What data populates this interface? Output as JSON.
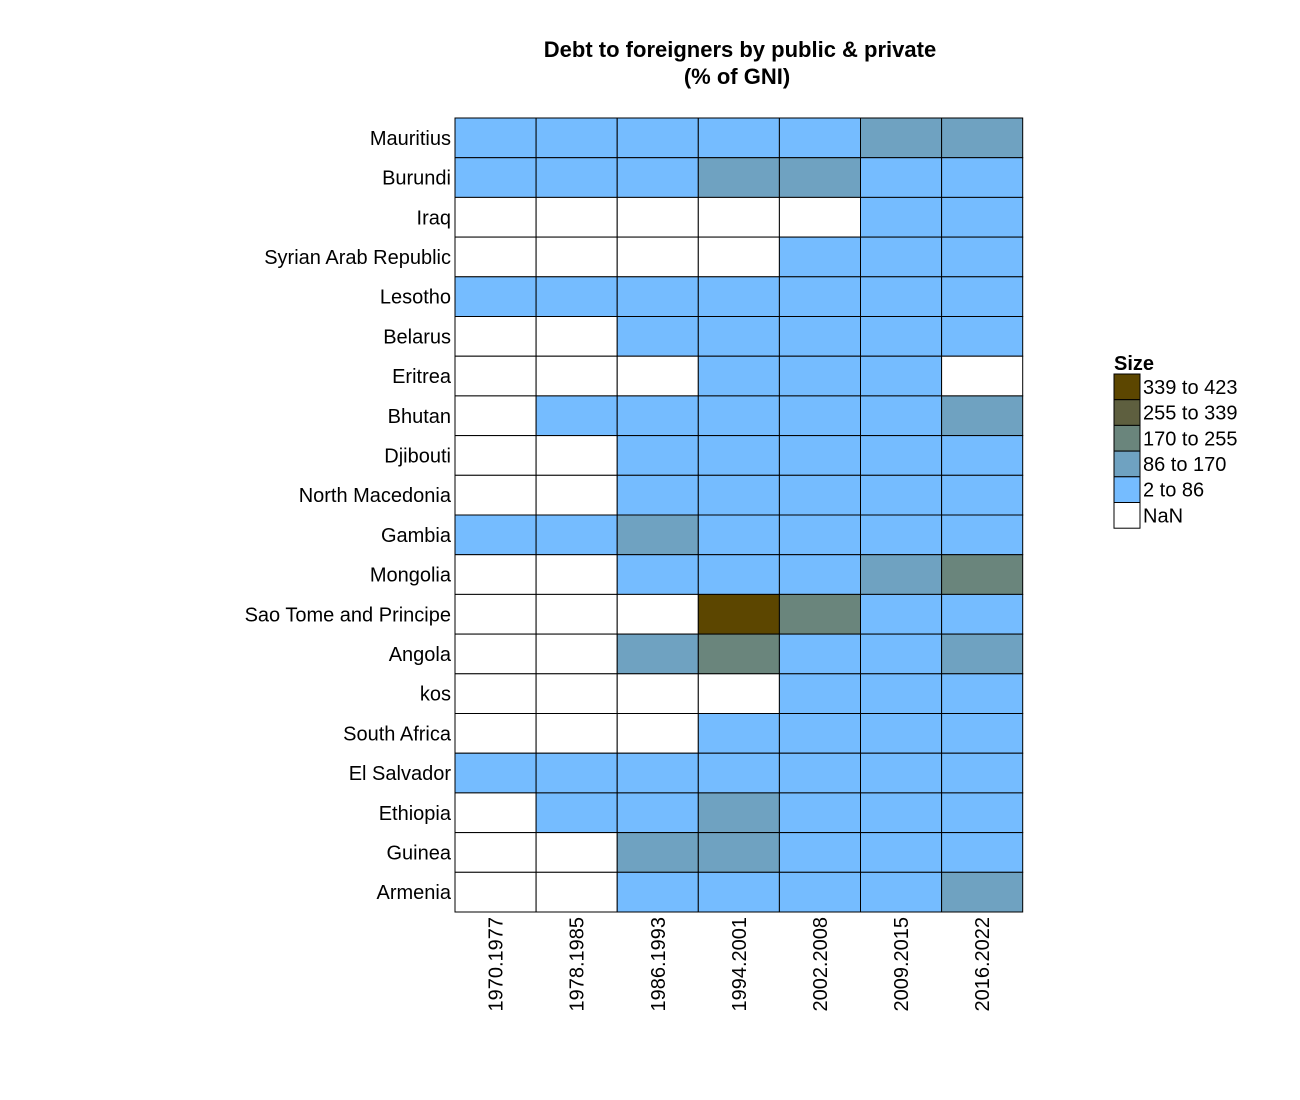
{
  "chart_data": {
    "type": "heatmap",
    "title": "Debt to foreigners by public & private",
    "subtitle": "(% of GNI)",
    "rows": [
      "Mauritius",
      "Burundi",
      "Iraq",
      "Syrian Arab Republic",
      "Lesotho",
      "Belarus",
      "Eritrea",
      "Bhutan",
      "Djibouti",
      "North Macedonia",
      "Gambia",
      "Mongolia",
      "Sao Tome and Principe",
      "Angola",
      "kos",
      "South Africa",
      "El Salvador",
      "Ethiopia",
      "Guinea",
      "Armenia"
    ],
    "columns": [
      "1970.1977",
      "1978.1985",
      "1986.1993",
      "1994.2001",
      "2002.2008",
      "2009.2015",
      "2016.2022"
    ],
    "value_bins": [
      "2 to 86",
      "86 to 170",
      "170 to 255",
      "255 to 339",
      "339 to 423"
    ],
    "cells": [
      [
        "2 to 86",
        "2 to 86",
        "2 to 86",
        "2 to 86",
        "2 to 86",
        "86 to 170",
        "86 to 170"
      ],
      [
        "2 to 86",
        "2 to 86",
        "2 to 86",
        "86 to 170",
        "86 to 170",
        "2 to 86",
        "2 to 86"
      ],
      [
        "NaN",
        "NaN",
        "NaN",
        "NaN",
        "NaN",
        "2 to 86",
        "2 to 86"
      ],
      [
        "NaN",
        "NaN",
        "NaN",
        "NaN",
        "2 to 86",
        "2 to 86",
        "2 to 86"
      ],
      [
        "2 to 86",
        "2 to 86",
        "2 to 86",
        "2 to 86",
        "2 to 86",
        "2 to 86",
        "2 to 86"
      ],
      [
        "NaN",
        "NaN",
        "2 to 86",
        "2 to 86",
        "2 to 86",
        "2 to 86",
        "2 to 86"
      ],
      [
        "NaN",
        "NaN",
        "NaN",
        "2 to 86",
        "2 to 86",
        "2 to 86",
        "NaN"
      ],
      [
        "NaN",
        "2 to 86",
        "2 to 86",
        "2 to 86",
        "2 to 86",
        "2 to 86",
        "86 to 170"
      ],
      [
        "NaN",
        "NaN",
        "2 to 86",
        "2 to 86",
        "2 to 86",
        "2 to 86",
        "2 to 86"
      ],
      [
        "NaN",
        "NaN",
        "2 to 86",
        "2 to 86",
        "2 to 86",
        "2 to 86",
        "2 to 86"
      ],
      [
        "2 to 86",
        "2 to 86",
        "86 to 170",
        "2 to 86",
        "2 to 86",
        "2 to 86",
        "2 to 86"
      ],
      [
        "NaN",
        "NaN",
        "2 to 86",
        "2 to 86",
        "2 to 86",
        "86 to 170",
        "170 to 255"
      ],
      [
        "NaN",
        "NaN",
        "NaN",
        "339 to 423",
        "170 to 255",
        "2 to 86",
        "2 to 86"
      ],
      [
        "NaN",
        "NaN",
        "86 to 170",
        "170 to 255",
        "2 to 86",
        "2 to 86",
        "86 to 170"
      ],
      [
        "NaN",
        "NaN",
        "NaN",
        "NaN",
        "2 to 86",
        "2 to 86",
        "2 to 86"
      ],
      [
        "NaN",
        "NaN",
        "NaN",
        "2 to 86",
        "2 to 86",
        "2 to 86",
        "2 to 86"
      ],
      [
        "2 to 86",
        "2 to 86",
        "2 to 86",
        "2 to 86",
        "2 to 86",
        "2 to 86",
        "2 to 86"
      ],
      [
        "NaN",
        "2 to 86",
        "2 to 86",
        "86 to 170",
        "2 to 86",
        "2 to 86",
        "2 to 86"
      ],
      [
        "NaN",
        "NaN",
        "86 to 170",
        "86 to 170",
        "2 to 86",
        "2 to 86",
        "2 to 86"
      ],
      [
        "NaN",
        "NaN",
        "2 to 86",
        "2 to 86",
        "2 to 86",
        "2 to 86",
        "86 to 170"
      ]
    ],
    "legend": {
      "title": "Size",
      "placement": "right",
      "items": [
        {
          "label": "339 to 423",
          "color": "#5c4600"
        },
        {
          "label": "255 to 339",
          "color": "#5e5f3f"
        },
        {
          "label": "170 to 255",
          "color": "#6a857c"
        },
        {
          "label": "86 to 170",
          "color": "#6fa2c1"
        },
        {
          "label": "2 to 86",
          "color": "#75bcff"
        },
        {
          "label": "NaN",
          "color": "#ffffff"
        }
      ]
    },
    "grid": false
  }
}
